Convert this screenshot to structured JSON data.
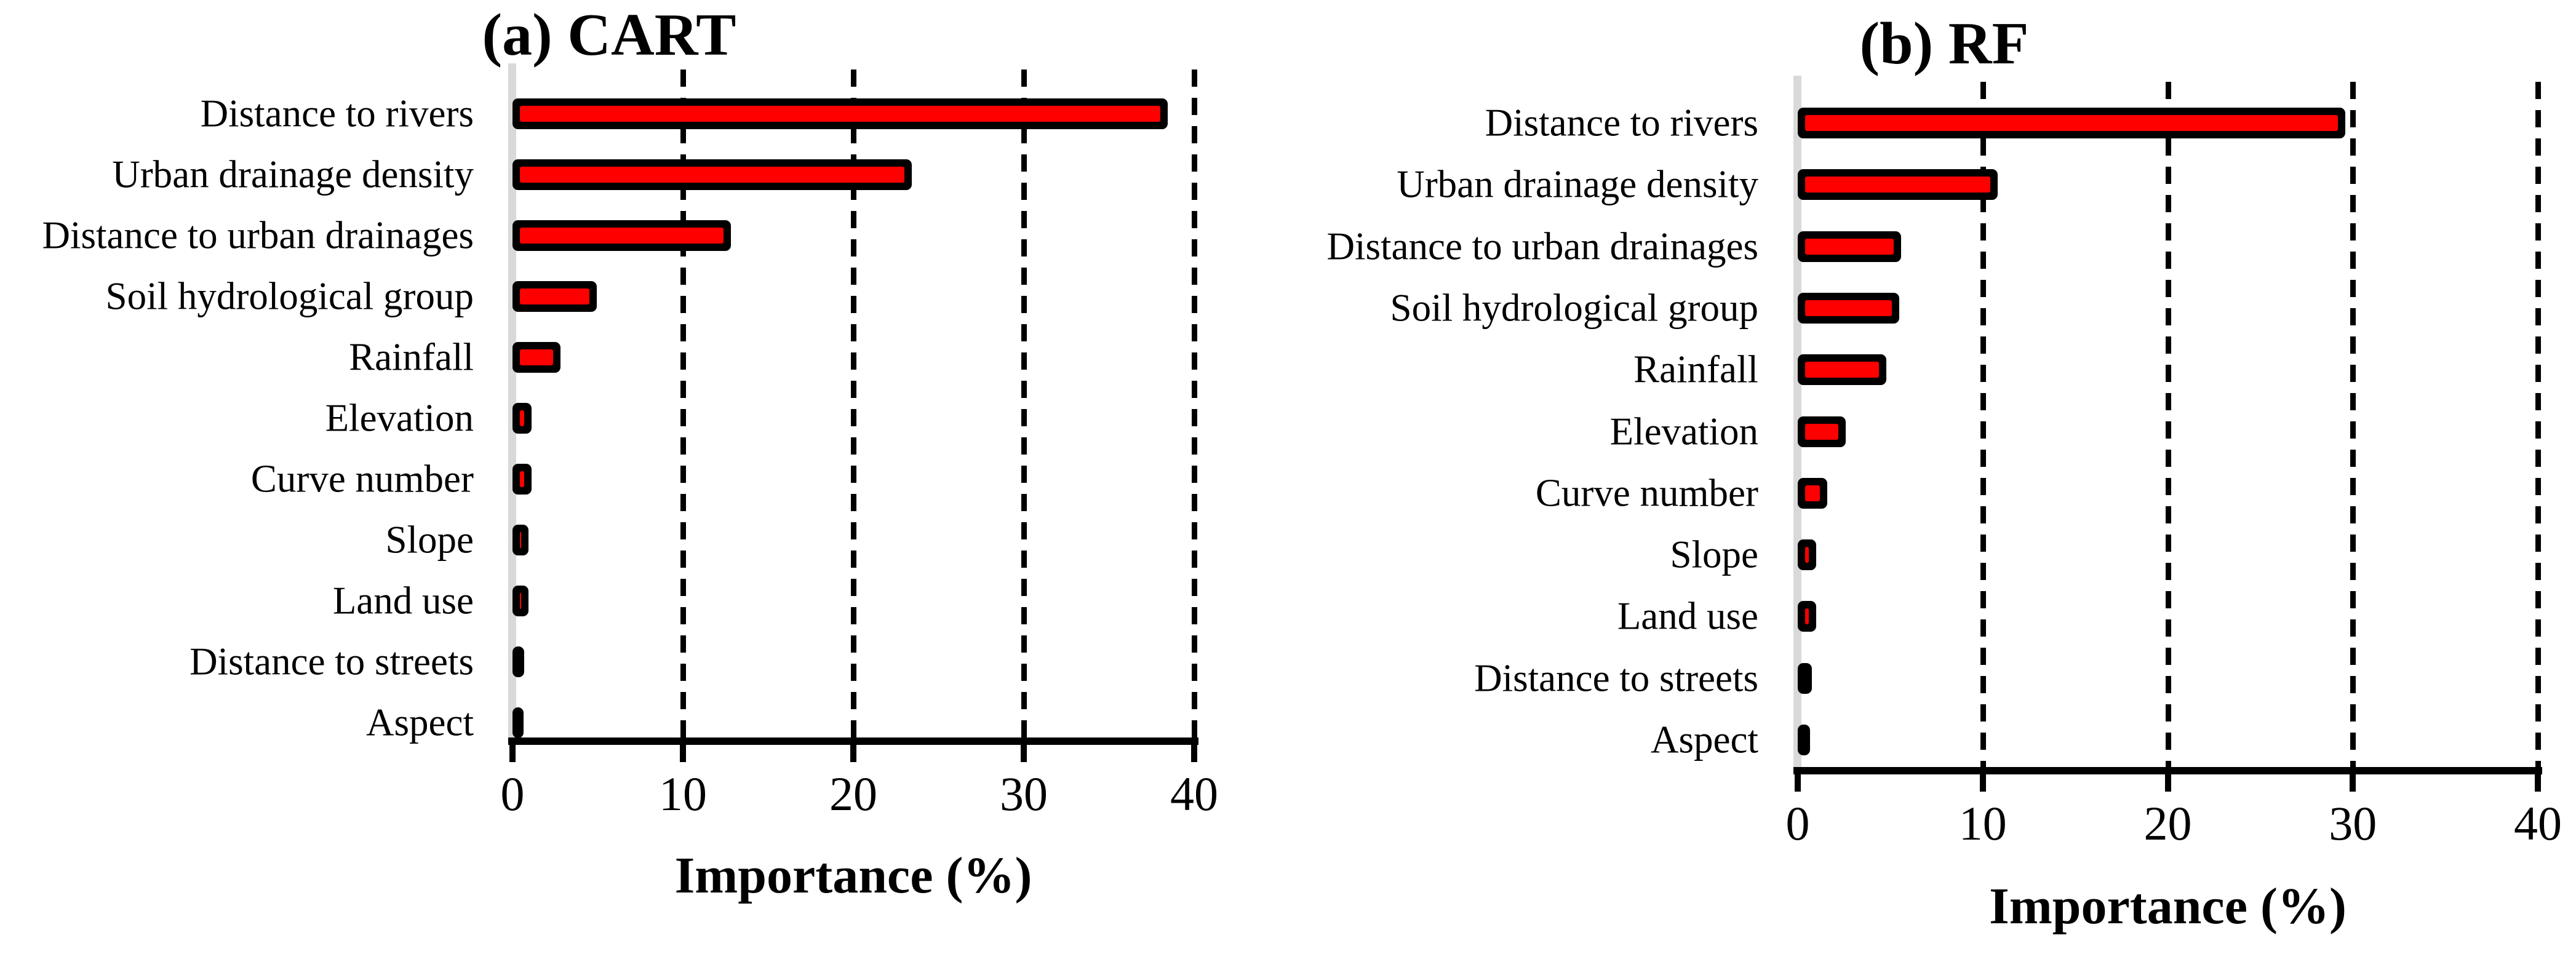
{
  "figure": {
    "background": "#FFFFFF"
  },
  "chart_data": [
    {
      "type": "bar",
      "orientation": "horizontal",
      "title": "(a) CART",
      "xlabel": "Importance (%)",
      "xlim": [
        0,
        40
      ],
      "xticks": [
        "0",
        "10",
        "20",
        "30",
        "40"
      ],
      "gridlines": [
        10,
        20,
        30,
        40
      ],
      "grid_style": "dashed",
      "bar_fill": "#FF0000",
      "bar_outline": "#000000",
      "axis_line_color": "#D9D9D9",
      "categories": [
        "Distance to rivers",
        "Urban drainage density",
        "Distance to urban drainages",
        "Soil hydrological group",
        "Rainfall",
        "Elevation",
        "Curve number",
        "Slope",
        "Land use",
        "Distance to streets",
        "Aspect"
      ],
      "values": [
        38,
        23,
        12.4,
        4.5,
        2.4,
        0.7,
        0.7,
        0.5,
        0.5,
        0.25,
        0.2
      ]
    },
    {
      "type": "bar",
      "orientation": "horizontal",
      "title": "(b) RF",
      "xlabel": "Importance (%)",
      "xlim": [
        0,
        40
      ],
      "xticks": [
        "0",
        "10",
        "20",
        "30",
        "40"
      ],
      "gridlines": [
        10,
        20,
        30,
        40
      ],
      "grid_style": "dashed",
      "bar_fill": "#FF0000",
      "bar_outline": "#000000",
      "axis_line_color": "#D9D9D9",
      "categories": [
        "Distance to rivers",
        "Urban drainage density",
        "Distance to urban drainages",
        "Soil hydrological group",
        "Rainfall",
        "Elevation",
        "Curve number",
        "Slope",
        "Land use",
        "Distance to streets",
        "Aspect"
      ],
      "values": [
        29.2,
        10.4,
        5.2,
        5.1,
        4.4,
        2.2,
        1.2,
        0.6,
        0.6,
        0.35,
        0.25
      ]
    }
  ]
}
